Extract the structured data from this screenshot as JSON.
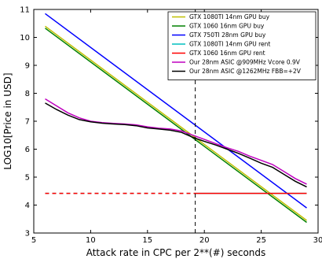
{
  "chart_data": {
    "type": "line",
    "title": "",
    "xlabel": "Attack rate in CPC per 2**(#) seconds",
    "ylabel": "LOG10[Price in USD]",
    "xlim": [
      5,
      30
    ],
    "ylim": [
      3,
      11
    ],
    "xticks": [
      "5",
      "10",
      "15",
      "20",
      "25",
      "30"
    ],
    "yticks": [
      "3",
      "4",
      "5",
      "6",
      "7",
      "8",
      "9",
      "10",
      "11"
    ],
    "legend_position": "top-right",
    "grid": false,
    "vline": {
      "x": 19.2,
      "style": "dashed",
      "color": "#000000"
    },
    "series": [
      {
        "name": "GTX 1080TI 14nm GPU buy",
        "color": "#bfbf00",
        "style": "solid",
        "x": [
          6,
          29
        ],
        "y": [
          10.4,
          3.45
        ]
      },
      {
        "name": "GTX 1060 16nm GPU buy",
        "color": "#008000",
        "style": "solid",
        "x": [
          6,
          29
        ],
        "y": [
          10.33,
          3.38
        ]
      },
      {
        "name": "GTX 750TI 28nm GPU buy",
        "color": "#0000ff",
        "style": "solid",
        "x": [
          6,
          29
        ],
        "y": [
          10.85,
          3.9
        ]
      },
      {
        "name": "GTX 1080TI 14nm GPU rent",
        "color": "#00bfbf",
        "style": "dashed_then_solid",
        "x": [
          6,
          19.2,
          29
        ],
        "y": [
          4.42,
          4.42,
          4.42
        ]
      },
      {
        "name": "GTX 1060 16nm GPU rent",
        "color": "#ff0000",
        "style": "dashed_then_solid",
        "x": [
          6,
          19.2,
          29
        ],
        "y": [
          4.42,
          4.42,
          4.42
        ]
      },
      {
        "name": "Our 28nm ASIC @909MHz Vcore 0.9V",
        "color": "#bf00bf",
        "style": "solid",
        "x": [
          6,
          7,
          8,
          9,
          10,
          11,
          12,
          13,
          14,
          15,
          16,
          17,
          18,
          19,
          20,
          21,
          22,
          23,
          24,
          25,
          26,
          27,
          28,
          29
        ],
        "y": [
          7.8,
          7.55,
          7.3,
          7.12,
          7.0,
          6.95,
          6.92,
          6.9,
          6.87,
          6.8,
          6.75,
          6.72,
          6.65,
          6.5,
          6.35,
          6.2,
          6.05,
          5.92,
          5.75,
          5.6,
          5.45,
          5.2,
          4.95,
          4.75
        ]
      },
      {
        "name": "Our 28nm ASIC @1262MHz FBB=+2V",
        "color": "#000000",
        "style": "solid",
        "x": [
          6,
          7,
          8,
          9,
          10,
          11,
          12,
          13,
          14,
          15,
          16,
          17,
          18,
          19,
          20,
          21,
          22,
          23,
          24,
          25,
          26,
          27,
          28,
          29
        ],
        "y": [
          7.65,
          7.42,
          7.22,
          7.06,
          6.98,
          6.93,
          6.9,
          6.88,
          6.84,
          6.76,
          6.72,
          6.68,
          6.6,
          6.42,
          6.28,
          6.15,
          6.0,
          5.85,
          5.68,
          5.5,
          5.35,
          5.1,
          4.85,
          4.65
        ]
      }
    ]
  }
}
